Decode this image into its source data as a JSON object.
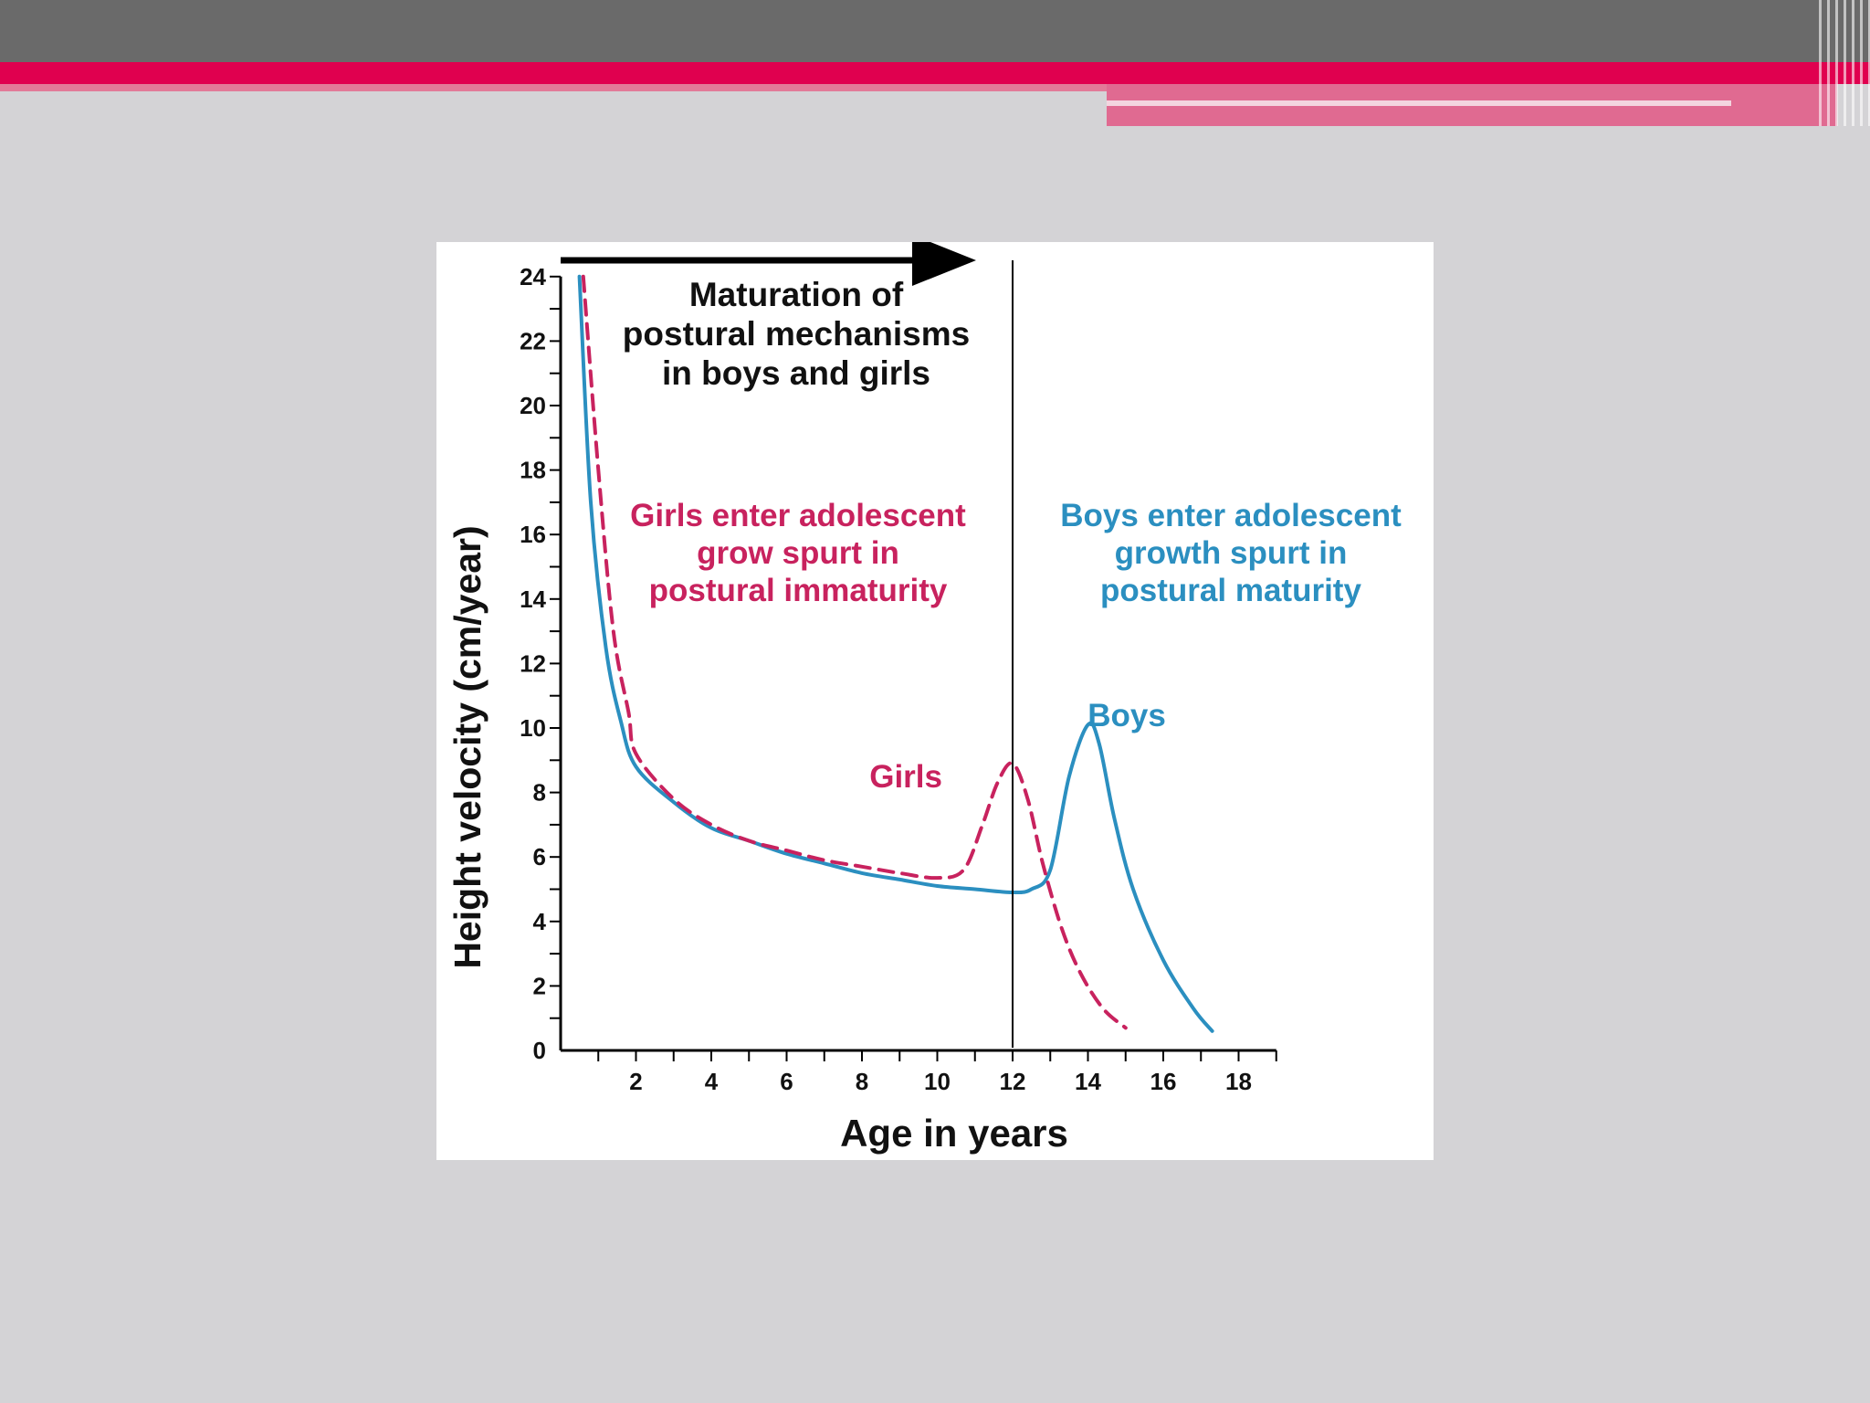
{
  "slide": {
    "colors": {
      "background": "#d4d3d6",
      "header": "#6a6a6a",
      "accent": "#e0004f"
    }
  },
  "chart_data": {
    "type": "line",
    "title": "",
    "xlabel": "Age in years",
    "ylabel": "Height velocity (cm/year)",
    "xlim": [
      0,
      19
    ],
    "ylim": [
      0,
      24
    ],
    "x_ticks": [
      2,
      4,
      6,
      8,
      10,
      12,
      14,
      16,
      18
    ],
    "y_ticks": [
      0,
      2,
      4,
      6,
      8,
      10,
      12,
      14,
      16,
      18,
      20,
      22,
      24
    ],
    "grid": false,
    "series": [
      {
        "name": "Boys",
        "color": "#2b8fc0",
        "style": "solid",
        "points": [
          [
            0.5,
            24
          ],
          [
            0.8,
            17
          ],
          [
            1.2,
            12.5
          ],
          [
            1.6,
            10.2
          ],
          [
            2,
            8.8
          ],
          [
            3,
            7.7
          ],
          [
            4,
            6.9
          ],
          [
            5,
            6.5
          ],
          [
            6,
            6.1
          ],
          [
            7,
            5.8
          ],
          [
            8,
            5.5
          ],
          [
            9,
            5.3
          ],
          [
            10,
            5.1
          ],
          [
            11,
            5.0
          ],
          [
            12,
            4.9
          ],
          [
            12.5,
            5.0
          ],
          [
            13,
            5.6
          ],
          [
            13.5,
            8.5
          ],
          [
            14,
            10.1
          ],
          [
            14.3,
            9.5
          ],
          [
            14.7,
            7.2
          ],
          [
            15.2,
            5.0
          ],
          [
            16,
            2.8
          ],
          [
            16.8,
            1.3
          ],
          [
            17.3,
            0.6
          ]
        ]
      },
      {
        "name": "Girls",
        "color": "#c8225e",
        "style": "dashed",
        "points": [
          [
            0.6,
            24
          ],
          [
            1,
            18
          ],
          [
            1.4,
            13
          ],
          [
            1.8,
            10.5
          ],
          [
            2,
            9.2
          ],
          [
            3,
            7.8
          ],
          [
            4,
            7.0
          ],
          [
            5,
            6.5
          ],
          [
            6,
            6.2
          ],
          [
            7,
            5.9
          ],
          [
            8,
            5.7
          ],
          [
            9,
            5.5
          ],
          [
            10,
            5.35
          ],
          [
            10.7,
            5.6
          ],
          [
            11.2,
            7.0
          ],
          [
            11.6,
            8.3
          ],
          [
            12,
            8.9
          ],
          [
            12.4,
            7.8
          ],
          [
            12.8,
            5.8
          ],
          [
            13.3,
            3.8
          ],
          [
            13.8,
            2.4
          ],
          [
            14.4,
            1.3
          ],
          [
            15,
            0.7
          ]
        ]
      }
    ],
    "annotations": {
      "maturation_lines": [
        "Maturation of",
        "postural mechanisms",
        "in boys and girls"
      ],
      "girls_note_lines": [
        "Girls enter adolescent",
        "grow spurt in",
        "postural immaturity"
      ],
      "boys_note_lines": [
        "Boys enter adolescent",
        "growth spurt in",
        "postural maturity"
      ],
      "girls_label": "Girls",
      "boys_label": "Boys",
      "marker_age": 12
    }
  }
}
